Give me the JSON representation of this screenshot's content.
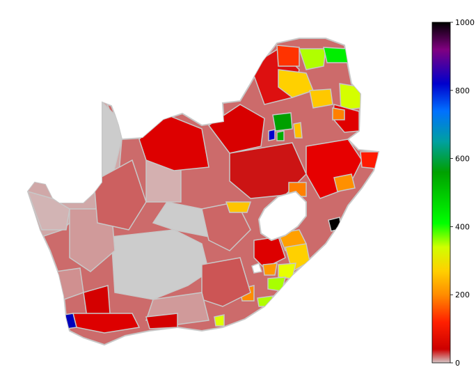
{
  "colorbar": {
    "min": 0,
    "max": 1000,
    "ticks": [
      0,
      200,
      400,
      600,
      800,
      1000
    ],
    "tick_labels": [
      "0",
      "200",
      "400",
      "600",
      "800",
      "1000"
    ],
    "stops": [
      {
        "value": 0,
        "color": "#d4c8c8"
      },
      {
        "value": 40,
        "color": "#cc0000"
      },
      {
        "value": 120,
        "color": "#ff2000"
      },
      {
        "value": 200,
        "color": "#ff8c00"
      },
      {
        "value": 270,
        "color": "#ffd000"
      },
      {
        "value": 340,
        "color": "#d0ff00"
      },
      {
        "value": 410,
        "color": "#00ff00"
      },
      {
        "value": 560,
        "color": "#00a000"
      },
      {
        "value": 650,
        "color": "#00a0a0"
      },
      {
        "value": 740,
        "color": "#0070ff"
      },
      {
        "value": 820,
        "color": "#0000cc"
      },
      {
        "value": 920,
        "color": "#800080"
      },
      {
        "value": 1000,
        "color": "#000000"
      }
    ]
  },
  "map": {
    "border_color": "#c8c8c8",
    "land_base_color": "#cc6666",
    "no_data_color": "#c8c8c8",
    "highlighted_regions": [
      {
        "name": "black-hotspot",
        "value": 1000,
        "color": "#000000"
      },
      {
        "name": "blue-cape-town",
        "value": 830,
        "color": "#0000cc"
      },
      {
        "name": "blue-gauteng",
        "value": 800,
        "color": "#0000cc"
      },
      {
        "name": "green-gauteng",
        "value": 560,
        "color": "#00a000"
      },
      {
        "name": "green-northeast",
        "value": 420,
        "color": "#00ff00"
      },
      {
        "name": "yellow-green-northeast",
        "value": 350,
        "color": "#d0ff00"
      }
    ]
  }
}
